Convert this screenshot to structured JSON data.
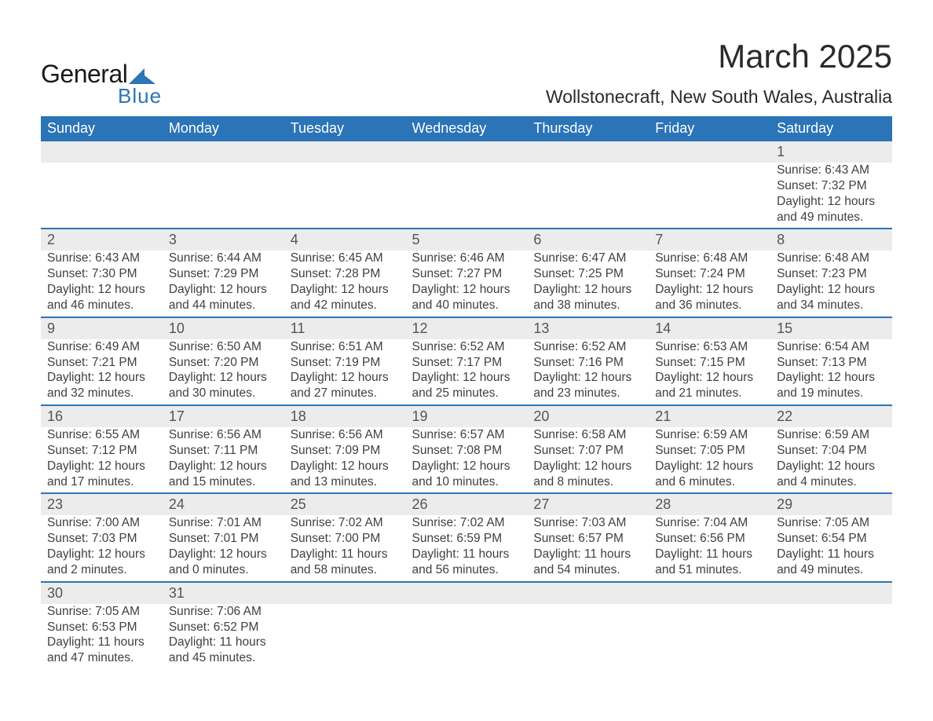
{
  "brand": {
    "general": "General",
    "blue": "Blue",
    "accent": "#2b74b8"
  },
  "title": "March 2025",
  "location": "Wollstonecraft, New South Wales, Australia",
  "colors": {
    "header_bg": "#2b74b8",
    "header_text": "#ffffff",
    "daynum_bg": "#ececec",
    "row_divider": "#2b74b8",
    "body_text": "#404040",
    "background": "#ffffff"
  },
  "day_headers": [
    "Sunday",
    "Monday",
    "Tuesday",
    "Wednesday",
    "Thursday",
    "Friday",
    "Saturday"
  ],
  "weeks": [
    {
      "nums": [
        "",
        "",
        "",
        "",
        "",
        "",
        "1"
      ],
      "cells": [
        null,
        null,
        null,
        null,
        null,
        null,
        {
          "sunrise": "6:43 AM",
          "sunset": "7:32 PM",
          "daylight": "12 hours and 49 minutes."
        }
      ]
    },
    {
      "nums": [
        "2",
        "3",
        "4",
        "5",
        "6",
        "7",
        "8"
      ],
      "cells": [
        {
          "sunrise": "6:43 AM",
          "sunset": "7:30 PM",
          "daylight": "12 hours and 46 minutes."
        },
        {
          "sunrise": "6:44 AM",
          "sunset": "7:29 PM",
          "daylight": "12 hours and 44 minutes."
        },
        {
          "sunrise": "6:45 AM",
          "sunset": "7:28 PM",
          "daylight": "12 hours and 42 minutes."
        },
        {
          "sunrise": "6:46 AM",
          "sunset": "7:27 PM",
          "daylight": "12 hours and 40 minutes."
        },
        {
          "sunrise": "6:47 AM",
          "sunset": "7:25 PM",
          "daylight": "12 hours and 38 minutes."
        },
        {
          "sunrise": "6:48 AM",
          "sunset": "7:24 PM",
          "daylight": "12 hours and 36 minutes."
        },
        {
          "sunrise": "6:48 AM",
          "sunset": "7:23 PM",
          "daylight": "12 hours and 34 minutes."
        }
      ]
    },
    {
      "nums": [
        "9",
        "10",
        "11",
        "12",
        "13",
        "14",
        "15"
      ],
      "cells": [
        {
          "sunrise": "6:49 AM",
          "sunset": "7:21 PM",
          "daylight": "12 hours and 32 minutes."
        },
        {
          "sunrise": "6:50 AM",
          "sunset": "7:20 PM",
          "daylight": "12 hours and 30 minutes."
        },
        {
          "sunrise": "6:51 AM",
          "sunset": "7:19 PM",
          "daylight": "12 hours and 27 minutes."
        },
        {
          "sunrise": "6:52 AM",
          "sunset": "7:17 PM",
          "daylight": "12 hours and 25 minutes."
        },
        {
          "sunrise": "6:52 AM",
          "sunset": "7:16 PM",
          "daylight": "12 hours and 23 minutes."
        },
        {
          "sunrise": "6:53 AM",
          "sunset": "7:15 PM",
          "daylight": "12 hours and 21 minutes."
        },
        {
          "sunrise": "6:54 AM",
          "sunset": "7:13 PM",
          "daylight": "12 hours and 19 minutes."
        }
      ]
    },
    {
      "nums": [
        "16",
        "17",
        "18",
        "19",
        "20",
        "21",
        "22"
      ],
      "cells": [
        {
          "sunrise": "6:55 AM",
          "sunset": "7:12 PM",
          "daylight": "12 hours and 17 minutes."
        },
        {
          "sunrise": "6:56 AM",
          "sunset": "7:11 PM",
          "daylight": "12 hours and 15 minutes."
        },
        {
          "sunrise": "6:56 AM",
          "sunset": "7:09 PM",
          "daylight": "12 hours and 13 minutes."
        },
        {
          "sunrise": "6:57 AM",
          "sunset": "7:08 PM",
          "daylight": "12 hours and 10 minutes."
        },
        {
          "sunrise": "6:58 AM",
          "sunset": "7:07 PM",
          "daylight": "12 hours and 8 minutes."
        },
        {
          "sunrise": "6:59 AM",
          "sunset": "7:05 PM",
          "daylight": "12 hours and 6 minutes."
        },
        {
          "sunrise": "6:59 AM",
          "sunset": "7:04 PM",
          "daylight": "12 hours and 4 minutes."
        }
      ]
    },
    {
      "nums": [
        "23",
        "24",
        "25",
        "26",
        "27",
        "28",
        "29"
      ],
      "cells": [
        {
          "sunrise": "7:00 AM",
          "sunset": "7:03 PM",
          "daylight": "12 hours and 2 minutes."
        },
        {
          "sunrise": "7:01 AM",
          "sunset": "7:01 PM",
          "daylight": "12 hours and 0 minutes."
        },
        {
          "sunrise": "7:02 AM",
          "sunset": "7:00 PM",
          "daylight": "11 hours and 58 minutes."
        },
        {
          "sunrise": "7:02 AM",
          "sunset": "6:59 PM",
          "daylight": "11 hours and 56 minutes."
        },
        {
          "sunrise": "7:03 AM",
          "sunset": "6:57 PM",
          "daylight": "11 hours and 54 minutes."
        },
        {
          "sunrise": "7:04 AM",
          "sunset": "6:56 PM",
          "daylight": "11 hours and 51 minutes."
        },
        {
          "sunrise": "7:05 AM",
          "sunset": "6:54 PM",
          "daylight": "11 hours and 49 minutes."
        }
      ]
    },
    {
      "nums": [
        "30",
        "31",
        "",
        "",
        "",
        "",
        ""
      ],
      "cells": [
        {
          "sunrise": "7:05 AM",
          "sunset": "6:53 PM",
          "daylight": "11 hours and 47 minutes."
        },
        {
          "sunrise": "7:06 AM",
          "sunset": "6:52 PM",
          "daylight": "11 hours and 45 minutes."
        },
        null,
        null,
        null,
        null,
        null
      ]
    }
  ],
  "labels": {
    "sunrise": "Sunrise: ",
    "sunset": "Sunset: ",
    "daylight": "Daylight: "
  }
}
